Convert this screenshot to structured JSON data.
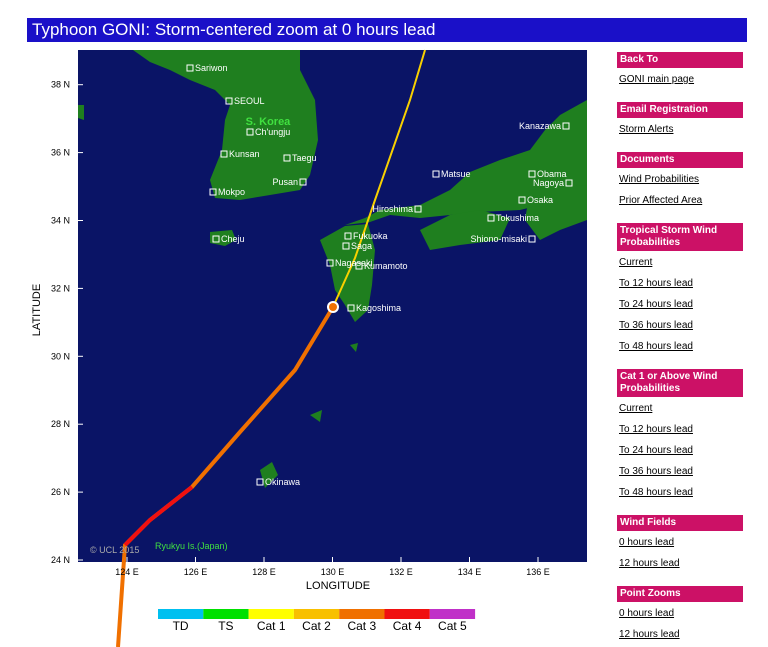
{
  "header": {
    "title": "Typhoon GONI: Storm-centered zoom at 0 hours lead"
  },
  "map": {
    "y_axis_label": "LATITUDE",
    "x_axis_label": "LONGITUDE",
    "y_ticks": [
      "24 N",
      "26 N",
      "28 N",
      "30 N",
      "32 N",
      "34 N",
      "36 N",
      "38 N"
    ],
    "x_ticks": [
      "124 E",
      "126 E",
      "128 E",
      "130 E",
      "132 E",
      "134 E",
      "136 E"
    ],
    "places": [
      "Sariwon",
      "SEOUL",
      "Ch'ungju",
      "Kunsan",
      "Taegu",
      "Pusan",
      "Mokpo",
      "Cheju",
      "Kanazawa",
      "Matsue",
      "Obama",
      "Nagoya",
      "Osaka",
      "Hiroshima",
      "Tokushima",
      "Shiono-misaki",
      "Fukuoka",
      "Saga",
      "Nagasaki",
      "Kumamoto",
      "Kagoshima",
      "Okinawa"
    ],
    "region_labels": [
      "S. Korea",
      "Ryukyu Is.(Japan)"
    ],
    "copyright": "© UCL 2015"
  },
  "legend": {
    "categories": [
      {
        "label": "TD",
        "color": "#00c0f0"
      },
      {
        "label": "TS",
        "color": "#00e000"
      },
      {
        "label": "Cat 1",
        "color": "#ffff00"
      },
      {
        "label": "Cat 2",
        "color": "#f8c000"
      },
      {
        "label": "Cat 3",
        "color": "#f07000"
      },
      {
        "label": "Cat 4",
        "color": "#f01010"
      },
      {
        "label": "Cat 5",
        "color": "#c030c8"
      }
    ]
  },
  "sidebar": {
    "sections": [
      {
        "title": "Back To",
        "links": [
          "GONI main page"
        ]
      },
      {
        "title": "Email Registration",
        "links": [
          "Storm Alerts"
        ]
      },
      {
        "title": "Documents",
        "links": [
          "Wind Probabilities",
          "Prior Affected Area"
        ]
      },
      {
        "title": "Tropical Storm Wind Probabilities",
        "links": [
          "Current",
          "To 12 hours lead",
          "To 24 hours lead",
          "To 36 hours lead",
          "To 48 hours lead"
        ]
      },
      {
        "title": "Cat 1 or Above Wind Probabilities",
        "links": [
          "Current",
          "To 12 hours lead",
          "To 24 hours lead",
          "To 36 hours lead",
          "To 48 hours lead"
        ]
      },
      {
        "title": "Wind Fields",
        "links": [
          "0 hours lead",
          "12 hours lead"
        ]
      },
      {
        "title": "Point Zooms",
        "links": [
          "0 hours lead",
          "12 hours lead"
        ]
      }
    ]
  }
}
